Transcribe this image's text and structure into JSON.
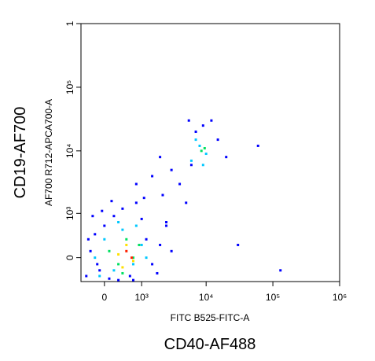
{
  "chart_data": {
    "type": "scatter",
    "xlabel": "FITC B525-FITC-A",
    "ylabel": "AF700 R712-APCA700-A",
    "xlabel_outer": "CD40-AF488",
    "ylabel_outer": "CD19-AF700",
    "scale": "logicle",
    "xlim": [
      -540,
      1000000
    ],
    "ylim": [
      -410,
      1000000
    ],
    "xticks": [
      0,
      {
        "value": 1000,
        "label": "10³"
      },
      {
        "value": 10000,
        "label": "10⁴"
      },
      {
        "value": 100000,
        "label": "10⁵"
      },
      {
        "value": 1000000,
        "label": "10⁶"
      }
    ],
    "yticks": [
      0,
      {
        "value": 1000,
        "label": "10³"
      },
      {
        "value": 10000,
        "label": "10⁴"
      },
      {
        "value": 100000,
        "label": "10⁵"
      },
      {
        "value": 1000000,
        "label": "1"
      }
    ],
    "series": [
      {
        "color": "#0000ff",
        "x": [
          -400,
          -300,
          -200,
          -100,
          0,
          100,
          200,
          300,
          400,
          600,
          800,
          1000,
          1200,
          1500,
          2000,
          2500,
          3000,
          -350,
          -250,
          1800,
          2200,
          1100,
          700,
          -150,
          150,
          4000,
          5000,
          6000,
          7000,
          9000,
          12000,
          15000,
          20000,
          5500,
          3000,
          2000,
          1500,
          60000,
          130000,
          30000,
          800,
          -50,
          2500
        ],
        "y": [
          -300,
          100,
          400,
          -200,
          600,
          -350,
          900,
          -380,
          1200,
          -300,
          1500,
          800,
          300,
          -100,
          200,
          600,
          100,
          300,
          900,
          -250,
          2000,
          1800,
          -380,
          -100,
          1600,
          3000,
          1500,
          6000,
          20000,
          25000,
          30000,
          15000,
          8000,
          30000,
          5000,
          8000,
          4000,
          12000,
          -200,
          200,
          3000,
          1100,
          700
        ]
      },
      {
        "color": "#00c8ff",
        "x": [
          -200,
          0,
          200,
          400,
          700,
          1000,
          -100,
          300,
          800,
          1200,
          6000,
          8000,
          10000,
          7000,
          9000
        ],
        "y": [
          0,
          300,
          -200,
          500,
          -100,
          200,
          -300,
          700,
          600,
          0,
          7000,
          12000,
          9000,
          15000,
          6000
        ]
      },
      {
        "color": "#00e060",
        "x": [
          100,
          300,
          500,
          700,
          900,
          400,
          8500,
          9500
        ],
        "y": [
          100,
          -100,
          300,
          0,
          200,
          -250,
          10000,
          11000
        ]
      },
      {
        "color": "#ffe000",
        "x": [
          300,
          500,
          700,
          400
        ],
        "y": [
          50,
          200,
          -50,
          -150
        ]
      },
      {
        "color": "#ff2000",
        "x": [
          500,
          650
        ],
        "y": [
          100,
          0
        ]
      }
    ]
  }
}
